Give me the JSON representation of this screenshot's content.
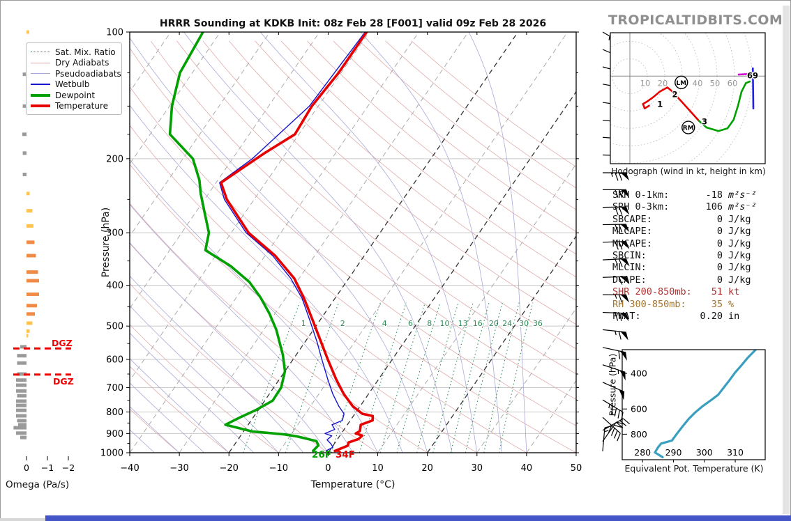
{
  "title": "HRRR Sounding at KDKB Init: 08z Feb 28 [F001] valid 09z Feb 28 2026",
  "header": {
    "site_brand": "TROPICALTIDBITS.COM"
  },
  "colors": {
    "temperature": "#e60000",
    "dewpoint": "#00a000",
    "wetbulb": "#1414cc",
    "dry_adiabat": "#e2abab",
    "pseudoadiabat": "#a9a9d9",
    "mix_ratio": "#2e8b57",
    "isotherm_gray": "#ababab",
    "isotherm_black": "#333333",
    "grid": "#c9c9c9",
    "theta_e_line": "#3a9fbf",
    "dgz": "#ee0000",
    "omega_up_strong": "#ef8a47",
    "omega_up_weak": "#fec44f",
    "omega_down": "#9a9a9a",
    "hodo_0_3": "#e60000",
    "hodo_3_6": "#00a000",
    "hodo_6_9": "#2222dd",
    "hodo_9plus": "#cc00cc",
    "footer_bar": "#4456c7",
    "shr_row": "#b03030",
    "rh_row": "#a5752c"
  },
  "legend": {
    "items": [
      {
        "label": "Sat. Mix. Ratio",
        "style": "dotted-green"
      },
      {
        "label": "Dry Adiabats",
        "style": "thin-pink"
      },
      {
        "label": "Pseudoadiabats",
        "style": "thin-periwinkle"
      },
      {
        "label": "Wetbulb",
        "style": "blue"
      },
      {
        "label": "Dewpoint",
        "style": "thick-green"
      },
      {
        "label": "Temperature",
        "style": "thick-red"
      }
    ]
  },
  "axes": {
    "x_label": "Temperature (°C)",
    "y_label": "Pressure (hPa)",
    "x_ticks": [
      -40,
      -30,
      -20,
      -10,
      0,
      10,
      20,
      30,
      40,
      50
    ],
    "y_ticks": [
      100,
      200,
      300,
      400,
      500,
      600,
      700,
      800,
      900,
      1000
    ],
    "y_minor_ticks": [
      125,
      150,
      175,
      250,
      350,
      450,
      550,
      650,
      750,
      850,
      950
    ]
  },
  "surface": {
    "dewpoint_label": "26F",
    "temperature_label": "34F"
  },
  "dgz": {
    "label": "DGZ",
    "top_p": 565,
    "bottom_p": 652
  },
  "omega_axis": {
    "label": "Omega (Pa/s)",
    "ticks": [
      "0",
      "−1",
      "−2"
    ],
    "tick_values": [
      0,
      -1,
      -2
    ]
  },
  "mixing_ratio_labels": [
    1,
    2,
    4,
    6,
    8,
    10,
    13,
    16,
    20,
    24,
    30,
    36
  ],
  "hodograph": {
    "caption": "Hodograph (wind in kt, height in km)",
    "ring_labels": [
      10,
      20,
      30,
      40,
      50,
      60
    ],
    "end_label": "69",
    "storm_motions": [
      {
        "label": "LM",
        "u": 29.5,
        "v": -3.6
      },
      {
        "label": "RM",
        "u": 33.5,
        "v": -29.5
      }
    ],
    "height_labels": [
      {
        "t": "1",
        "u": 14.5,
        "v": -16
      },
      {
        "t": "2",
        "u": 23,
        "v": -10.5
      },
      {
        "t": "3",
        "u": 40,
        "v": -26
      }
    ]
  },
  "stats": {
    "rows": [
      {
        "label": "SRH 0-1km:",
        "value": "-18",
        "unit": "m²s⁻²",
        "color": "#111111",
        "italic_unit": true
      },
      {
        "label": "SRH 0-3km:",
        "value": "106",
        "unit": "m²s⁻²",
        "color": "#111111",
        "italic_unit": true
      },
      {
        "label": "SBCAPE:",
        "value": "0",
        "unit": "J/kg",
        "color": "#111111"
      },
      {
        "label": "MLCAPE:",
        "value": "0",
        "unit": "J/kg",
        "color": "#111111"
      },
      {
        "label": "MUCAPE:",
        "value": "0",
        "unit": "J/kg",
        "color": "#111111"
      },
      {
        "label": "SBCIN:",
        "value": "0",
        "unit": "J/kg",
        "color": "#111111"
      },
      {
        "label": "MLCIN:",
        "value": "0",
        "unit": "J/kg",
        "color": "#111111"
      },
      {
        "label": "DCAPE:",
        "value": "0",
        "unit": "J/kg",
        "color": "#111111"
      },
      {
        "label": "SHR 200-850mb:",
        "value": "51",
        "unit": "kt",
        "color": "#b03030"
      },
      {
        "label": "RH 300-850mb:",
        "value": "35",
        "unit": "%",
        "color": "#a5752c"
      },
      {
        "label": "PWAT:",
        "value": "0.20",
        "unit": "in",
        "color": "#111111"
      }
    ]
  },
  "theta_e_axis": {
    "x_label": "Equivalent Pot. Temperature (K)",
    "y_label": "Pressure (hPa)",
    "x_ticks": [
      280,
      290,
      300,
      310
    ],
    "y_ticks": [
      400,
      600,
      800
    ]
  },
  "chart_data": {
    "type": "skewt-sounding",
    "skewt": {
      "xlabel": "Temperature (°C)",
      "ylabel": "Pressure (hPa)",
      "xlim": [
        -40,
        50
      ],
      "plim": [
        100,
        1000
      ],
      "temperature_c": [
        [
          100,
          -50.5
        ],
        [
          125,
          -50.5
        ],
        [
          150,
          -51.3
        ],
        [
          175,
          -50.8
        ],
        [
          195,
          -54.5
        ],
        [
          228,
          -59
        ],
        [
          250,
          -55.5
        ],
        [
          300,
          -46.5
        ],
        [
          340,
          -38
        ],
        [
          385,
          -31
        ],
        [
          430,
          -26.2
        ],
        [
          490,
          -21
        ],
        [
          545,
          -16.8
        ],
        [
          600,
          -13
        ],
        [
          670,
          -8.5
        ],
        [
          725,
          -5
        ],
        [
          775,
          -1.5
        ],
        [
          808,
          1.5
        ],
        [
          818,
          3.9
        ],
        [
          838,
          4.5
        ],
        [
          858,
          2.7
        ],
        [
          888,
          3.4
        ],
        [
          900,
          2.9
        ],
        [
          910,
          4.5
        ],
        [
          928,
          4.2
        ],
        [
          945,
          2.7
        ],
        [
          962,
          3.0
        ],
        [
          990,
          1.1
        ]
      ],
      "dewpoint_c": [
        [
          100,
          -83.5
        ],
        [
          125,
          -82.5
        ],
        [
          150,
          -79.5
        ],
        [
          175,
          -76
        ],
        [
          200,
          -68
        ],
        [
          225,
          -63.7
        ],
        [
          242,
          -61.6
        ],
        [
          270,
          -58
        ],
        [
          300,
          -54.5
        ],
        [
          330,
          -52.8
        ],
        [
          360,
          -45.5
        ],
        [
          393,
          -39.5
        ],
        [
          427,
          -35.2
        ],
        [
          467,
          -31.1
        ],
        [
          510,
          -27.5
        ],
        [
          585,
          -22.7
        ],
        [
          640,
          -20
        ],
        [
          700,
          -18.5
        ],
        [
          752,
          -18.4
        ],
        [
          790,
          -20.4
        ],
        [
          825,
          -22.7
        ],
        [
          858,
          -24.6
        ],
        [
          890,
          -18.3
        ],
        [
          905,
          -11.2
        ],
        [
          915,
          -8.4
        ],
        [
          938,
          -4.0
        ],
        [
          960,
          -3.0
        ],
        [
          990,
          -3.3
        ]
      ],
      "wetbulb_c": [
        [
          100,
          -50.8
        ],
        [
          150,
          -51.8
        ],
        [
          200,
          -56
        ],
        [
          228,
          -59.3
        ],
        [
          250,
          -56
        ],
        [
          300,
          -47
        ],
        [
          340,
          -38.5
        ],
        [
          385,
          -31.7
        ],
        [
          430,
          -26.6
        ],
        [
          490,
          -21.6
        ],
        [
          545,
          -17.6
        ],
        [
          600,
          -14.2
        ],
        [
          670,
          -10.2
        ],
        [
          725,
          -7.2
        ],
        [
          775,
          -4.3
        ],
        [
          808,
          -2.2
        ],
        [
          838,
          -1.6
        ],
        [
          858,
          -3.1
        ],
        [
          880,
          -1.9
        ],
        [
          900,
          -3.3
        ],
        [
          912,
          -1.6
        ],
        [
          932,
          -2.0
        ],
        [
          952,
          -0.7
        ],
        [
          970,
          0.2
        ],
        [
          990,
          -0.7
        ]
      ],
      "surface_temp_f": 34,
      "surface_dewp_f": 26
    },
    "hodograph": {
      "units": "kt",
      "segments": [
        {
          "name": "0-3km",
          "colorKey": "hodo_0_3",
          "points": [
            [
              11,
              -17
            ],
            [
              8.5,
              -18.5
            ],
            [
              7.5,
              -16
            ],
            [
              10,
              -14.5
            ],
            [
              13.5,
              -12
            ],
            [
              17,
              -9
            ],
            [
              21.5,
              -6.5
            ],
            [
              24,
              -8.5
            ],
            [
              30,
              -15
            ],
            [
              39.5,
              -25.6
            ]
          ]
        },
        {
          "name": "3-6km",
          "colorKey": "hodo_3_6",
          "points": [
            [
              39.5,
              -25.6
            ],
            [
              44,
              -29.5
            ],
            [
              50.8,
              -31.5
            ],
            [
              56,
              -30
            ],
            [
              59.5,
              -25
            ],
            [
              62,
              -17
            ],
            [
              64,
              -9
            ],
            [
              66.5,
              -4
            ],
            [
              68.8,
              -3.1
            ]
          ]
        },
        {
          "name": "6-9km",
          "colorKey": "hodo_6_9",
          "points": [
            [
              70.5,
              4.5
            ],
            [
              70.8,
              -18.5
            ]
          ]
        },
        {
          "name": "9km+",
          "colorKey": "hodo_9plus",
          "points": [
            [
              62.4,
              0.9
            ],
            [
              68,
              1.2
            ]
          ]
        }
      ]
    },
    "theta_e": {
      "xlabel": "Equivalent Pot. Temperature (K)",
      "points_k_hpa": [
        [
          286.5,
          1040
        ],
        [
          284,
          985
        ],
        [
          285,
          930
        ],
        [
          286,
          890
        ],
        [
          289.5,
          860
        ],
        [
          291,
          800
        ],
        [
          293,
          730
        ],
        [
          295,
          670
        ],
        [
          297,
          625
        ],
        [
          299.5,
          580
        ],
        [
          302,
          545
        ],
        [
          304.5,
          510
        ],
        [
          306.5,
          465
        ],
        [
          308,
          435
        ],
        [
          310,
          395
        ],
        [
          312,
          365
        ],
        [
          314,
          335
        ],
        [
          316,
          312
        ],
        [
          317.5,
          295
        ]
      ]
    },
    "omega_pa_s": [
      [
        100,
        -0.13
      ],
      [
        126,
        0.18
      ],
      [
        150,
        0.18
      ],
      [
        175,
        0.2
      ],
      [
        194,
        0.18
      ],
      [
        218,
        0.18
      ],
      [
        242,
        -0.15
      ],
      [
        266,
        -0.28
      ],
      [
        289,
        -0.33
      ],
      [
        316,
        -0.38
      ],
      [
        340,
        -0.45
      ],
      [
        372,
        -0.55
      ],
      [
        390,
        -0.6
      ],
      [
        420,
        -0.6
      ],
      [
        447,
        -0.5
      ],
      [
        468,
        -0.4
      ],
      [
        492,
        -0.28
      ],
      [
        514,
        -0.15
      ],
      [
        527,
        -0.08
      ],
      [
        560,
        0.3
      ],
      [
        588,
        0.45
      ],
      [
        612,
        0.45
      ],
      [
        650,
        0.45
      ],
      [
        672,
        0.5
      ],
      [
        691,
        0.5
      ],
      [
        713,
        0.5
      ],
      [
        732,
        0.45
      ],
      [
        754,
        0.5
      ],
      [
        772,
        0.5
      ],
      [
        793,
        0.5
      ],
      [
        817,
        0.5
      ],
      [
        839,
        0.45
      ],
      [
        858,
        0.4
      ],
      [
        872,
        0.62
      ],
      [
        898,
        0.5
      ],
      [
        920,
        0.3
      ]
    ],
    "wind_barbs": [
      {
        "p": 100,
        "dir": 300,
        "spd": 45
      },
      {
        "p": 110,
        "dir": 293,
        "spd": 50
      },
      {
        "p": 121,
        "dir": 285,
        "spd": 60
      },
      {
        "p": 133,
        "dir": 280,
        "spd": 75
      },
      {
        "p": 147,
        "dir": 278,
        "spd": 70
      },
      {
        "p": 162,
        "dir": 276,
        "spd": 55
      },
      {
        "p": 178,
        "dir": 274,
        "spd": 60
      },
      {
        "p": 196,
        "dir": 272,
        "spd": 80
      },
      {
        "p": 216,
        "dir": 270,
        "spd": 75
      },
      {
        "p": 237,
        "dir": 270,
        "spd": 70
      },
      {
        "p": 261,
        "dir": 269,
        "spd": 70
      },
      {
        "p": 287,
        "dir": 269,
        "spd": 70
      },
      {
        "p": 316,
        "dir": 268,
        "spd": 70
      },
      {
        "p": 348,
        "dir": 267,
        "spd": 65
      },
      {
        "p": 383,
        "dir": 268,
        "spd": 60
      },
      {
        "p": 421,
        "dir": 270,
        "spd": 65
      },
      {
        "p": 464,
        "dir": 272,
        "spd": 70
      },
      {
        "p": 510,
        "dir": 276,
        "spd": 65
      },
      {
        "p": 562,
        "dir": 282,
        "spd": 60
      },
      {
        "p": 618,
        "dir": 288,
        "spd": 55
      },
      {
        "p": 680,
        "dir": 294,
        "spd": 50
      },
      {
        "p": 749,
        "dir": 301,
        "spd": 45
      },
      {
        "p": 824,
        "dir": 312,
        "spd": 40
      },
      {
        "p": 885,
        "dir": 240,
        "spd": 30
      },
      {
        "p": 940,
        "dir": 215,
        "spd": 20
      },
      {
        "p": 995,
        "dir": 185,
        "spd": 15
      }
    ]
  }
}
